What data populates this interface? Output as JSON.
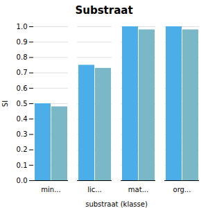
{
  "chart_data": {
    "type": "bar",
    "title": "Substraat",
    "xlabel": "substraat (klasse)",
    "ylabel": "SI",
    "categories": [
      "min...",
      "lic...",
      "mat...",
      "org..."
    ],
    "series": [
      {
        "color": "#4baee8",
        "values": [
          0.5,
          0.75,
          1.0,
          1.0
        ]
      },
      {
        "color": "#7ab8c8",
        "values": [
          0.48,
          0.73,
          0.98,
          0.98
        ]
      }
    ],
    "ylim": [
      0.0,
      1.0
    ],
    "yticks": [
      {
        "value": 0.0,
        "label": "0.0"
      },
      0.1,
      0.2,
      0.3,
      0.4,
      0.5,
      0.6,
      0.7,
      0.8,
      0.9,
      {
        "value": 1.0,
        "label": "1.0"
      }
    ],
    "grid": true
  }
}
